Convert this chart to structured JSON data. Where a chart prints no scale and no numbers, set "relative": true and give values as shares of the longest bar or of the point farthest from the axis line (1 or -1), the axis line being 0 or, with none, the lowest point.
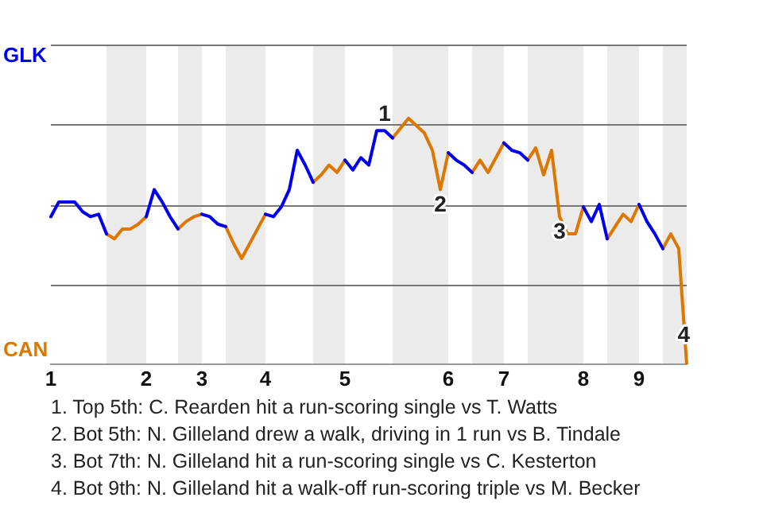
{
  "chart_data": {
    "type": "line",
    "relative": true,
    "categories": [
      "1",
      null,
      null,
      null,
      null,
      null,
      null,
      null,
      null,
      null,
      null,
      null,
      "2",
      null,
      null,
      null,
      null,
      null,
      null,
      "3",
      null,
      null,
      null,
      null,
      null,
      null,
      null,
      "4",
      null,
      null,
      null,
      null,
      null,
      null,
      null,
      null,
      null,
      "5",
      null,
      null,
      null,
      null,
      null,
      null,
      null,
      null,
      null,
      null,
      null,
      null,
      "6",
      null,
      null,
      null,
      null,
      null,
      null,
      "7",
      null,
      null,
      null,
      null,
      null,
      null,
      null,
      null,
      null,
      "8",
      null,
      null,
      null,
      null,
      null,
      null,
      "9",
      null,
      null,
      null,
      null,
      null,
      null
    ],
    "grid": "y",
    "legend": false,
    "marker": "none",
    "line_style": "solid",
    "series": [
      {
        "color": "#0000ee",
        "values": [
          0.6,
          0.66,
          0.66,
          0.66,
          0.62,
          0.6,
          0.61,
          0.53,
          null,
          null,
          null,
          null,
          0.6,
          0.71,
          0.66,
          0.6,
          0.55,
          null,
          null,
          0.61,
          0.6,
          0.57,
          0.56,
          null,
          null,
          null,
          null,
          0.61,
          0.6,
          0.64,
          0.71,
          0.87,
          0.81,
          0.74,
          null,
          null,
          null,
          0.83,
          0.79,
          0.84,
          0.81,
          0.95,
          0.95,
          0.92,
          null,
          null,
          null,
          null,
          null,
          null,
          0.86,
          0.83,
          0.81,
          0.78,
          null,
          null,
          null,
          0.9,
          0.87,
          0.86,
          0.83,
          null,
          null,
          null,
          null,
          null,
          null,
          0.64,
          0.58,
          0.65,
          0.51,
          null,
          null,
          null,
          0.65,
          0.58,
          0.53,
          0.47,
          null,
          null,
          null
        ]
      },
      {
        "color": "#dd7700",
        "values": [
          null,
          null,
          null,
          null,
          null,
          null,
          null,
          0.53,
          0.51,
          0.55,
          0.55,
          0.57,
          0.6,
          null,
          null,
          null,
          0.55,
          0.58,
          0.6,
          0.61,
          null,
          null,
          0.56,
          0.49,
          0.43,
          0.49,
          0.55,
          0.61,
          null,
          null,
          null,
          null,
          null,
          0.74,
          0.77,
          0.81,
          0.78,
          0.83,
          null,
          null,
          null,
          null,
          null,
          0.92,
          0.96,
          1,
          0.97,
          0.94,
          0.87,
          0.71,
          0.86,
          null,
          null,
          0.78,
          0.83,
          0.78,
          0.84,
          0.9,
          null,
          null,
          0.83,
          0.88,
          0.77,
          0.87,
          0.6,
          0.53,
          0.53,
          0.64,
          null,
          null,
          0.51,
          0.56,
          0.61,
          0.58,
          0.65,
          null,
          null,
          0.47,
          0.53,
          0.47,
          0
        ]
      }
    ],
    "annotations": [
      {
        "text": "1",
        "y": 0.95
      },
      {
        "text": "2",
        "y": 0.71
      },
      {
        "text": "3",
        "y": 0.6
      },
      {
        "text": "4",
        "y": 0.18
      },
      "GLK",
      "CAN",
      "1. Top 5th: C. Rearden hit a run-scoring single vs T. Watts",
      "2. Bot 5th: N. Gilleland drew a walk, driving in 1 run vs B. Tindale",
      "3. Bot 7th: N. Gilleland hit a run-scoring single vs C. Kesterton",
      "4. Bot 9th: N. Gilleland hit a walk-off run-scoring triple vs M. Becker"
    ]
  }
}
